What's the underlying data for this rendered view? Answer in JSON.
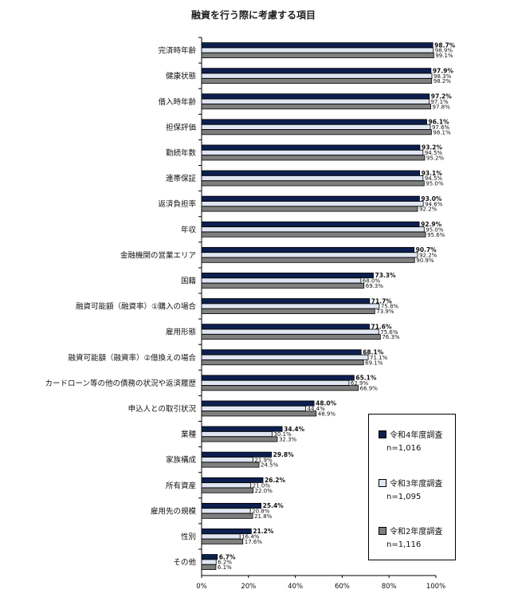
{
  "chart_data": {
    "type": "bar",
    "orientation": "horizontal",
    "title": "融資を行う際に考慮する項目",
    "categories": [
      "完済時年齢",
      "健康状態",
      "借入時年齢",
      "担保評価",
      "勤続年数",
      "連帯保証",
      "返済負担率",
      "年収",
      "金融機関の営業エリア",
      "国籍",
      "融資可能額（融資率）①購入の場合",
      "雇用形態",
      "融資可能額（融資率）②借換えの場合",
      "カードローン等の他の債務の状況や返済履歴",
      "申込人との取引状況",
      "業種",
      "家族構成",
      "所有資産",
      "雇用先の規模",
      "性別",
      "その他"
    ],
    "series": [
      {
        "name": "令和4年度調査",
        "n": "n=1,016",
        "color": "#0d1f4f",
        "values": [
          98.7,
          97.9,
          97.2,
          96.1,
          93.2,
          93.1,
          93.0,
          92.9,
          90.7,
          73.3,
          71.7,
          71.6,
          68.1,
          65.1,
          48.0,
          34.4,
          29.8,
          26.2,
          25.4,
          21.2,
          6.7
        ]
      },
      {
        "name": "令和3年度調査",
        "n": "n=1,095",
        "color": "#dfe6f2",
        "values": [
          98.9,
          98.3,
          97.1,
          97.6,
          94.5,
          94.5,
          94.6,
          95.0,
          92.2,
          68.0,
          75.8,
          75.6,
          71.1,
          62.9,
          44.4,
          30.1,
          21.9,
          21.0,
          20.8,
          16.4,
          6.2
        ]
      },
      {
        "name": "令和2年度調査",
        "n": "n=1,116",
        "color": "#7f7f7f",
        "values": [
          99.1,
          98.2,
          97.8,
          98.1,
          95.2,
          95.0,
          92.2,
          95.6,
          90.9,
          69.3,
          73.9,
          76.3,
          69.1,
          66.9,
          48.9,
          32.3,
          24.5,
          22.0,
          21.8,
          17.6,
          6.1
        ]
      }
    ],
    "xlim": [
      0,
      100
    ],
    "xticks": [
      "0%",
      "20%",
      "40%",
      "60%",
      "80%",
      "100%"
    ],
    "legend_position": "bottom-right"
  }
}
